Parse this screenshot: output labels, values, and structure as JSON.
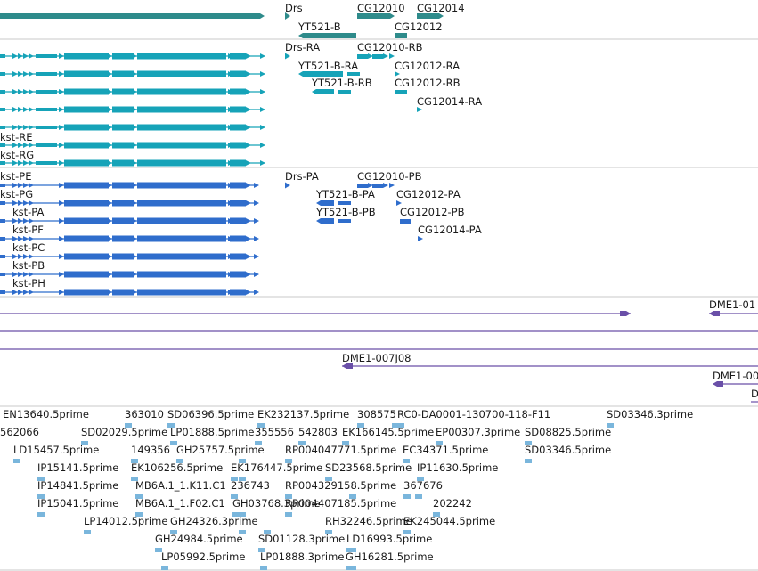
{
  "colors": {
    "gene": "#2e8b8b",
    "transcript": "#16a3b8",
    "protein": "#2f6dcc",
    "clone": "#6a4fa8",
    "est": "#7ab6dc",
    "divider": "#c8c8c8",
    "text": "#1a1a1a"
  },
  "gene_labels": [
    "Drs",
    "CG12010",
    "CG12014",
    "YT521-B",
    "CG12012"
  ],
  "transcript_labels": [
    "kst-RE",
    "kst-RG",
    "Drs-RA",
    "CG12010-RB",
    "YT521-B-RA",
    "CG12012-RA",
    "YT521-B-RB",
    "CG12012-RB",
    "CG12014-RA"
  ],
  "protein_labels": [
    "kst-PE",
    "kst-PG",
    "kst-PA",
    "kst-PF",
    "kst-PC",
    "kst-PB",
    "kst-PH",
    "Drs-PA",
    "CG12010-PB",
    "YT521-B-PA",
    "CG12012-PA",
    "YT521-B-PB",
    "CG12012-PB",
    "CG12014-PA"
  ],
  "clone_labels": [
    "DME1-01",
    "DME1-007J08",
    "DME1-00",
    "D"
  ],
  "est_labels": [
    "EN13640.5prime",
    "363010",
    "SD06396.5prime",
    "EK232137.5prime",
    "308575",
    "RC0-DA0001-130700-118-F11",
    "SD03346.3prime",
    "562066",
    "SD02029.5prime",
    "LP01888.5prime",
    "355556",
    "542803",
    "EK166145.5prime",
    "EP00307.3prime",
    "SD08825.5prime",
    "LD15457.5prime",
    "149356",
    "GH25757.5prime",
    "RP004047771.5prime",
    "EC34371.5prime",
    "SD03346.5prime",
    "IP15141.5prime",
    "EK106256.5prime",
    "EK176447.5prime",
    "SD23568.5prime",
    "IP11630.5prime",
    "IP14841.5prime",
    "MB6A.1_1.K11.C1",
    "236743",
    "RP004329158.5prime",
    "367676",
    "IP15041.5prime",
    "MB6A.1_1.F02.C1",
    "GH03768.3prime",
    "RP004407185.5prime",
    "202242",
    "LP14012.5prime",
    "GH24326.3prime",
    "RH32246.5prime",
    "EK245044.5prime",
    "GH24984.5prime",
    "SD01128.3prime",
    "LD16993.5prime",
    "LP05992.5prime",
    "LP01888.3prime",
    "GH16281.5prime"
  ]
}
